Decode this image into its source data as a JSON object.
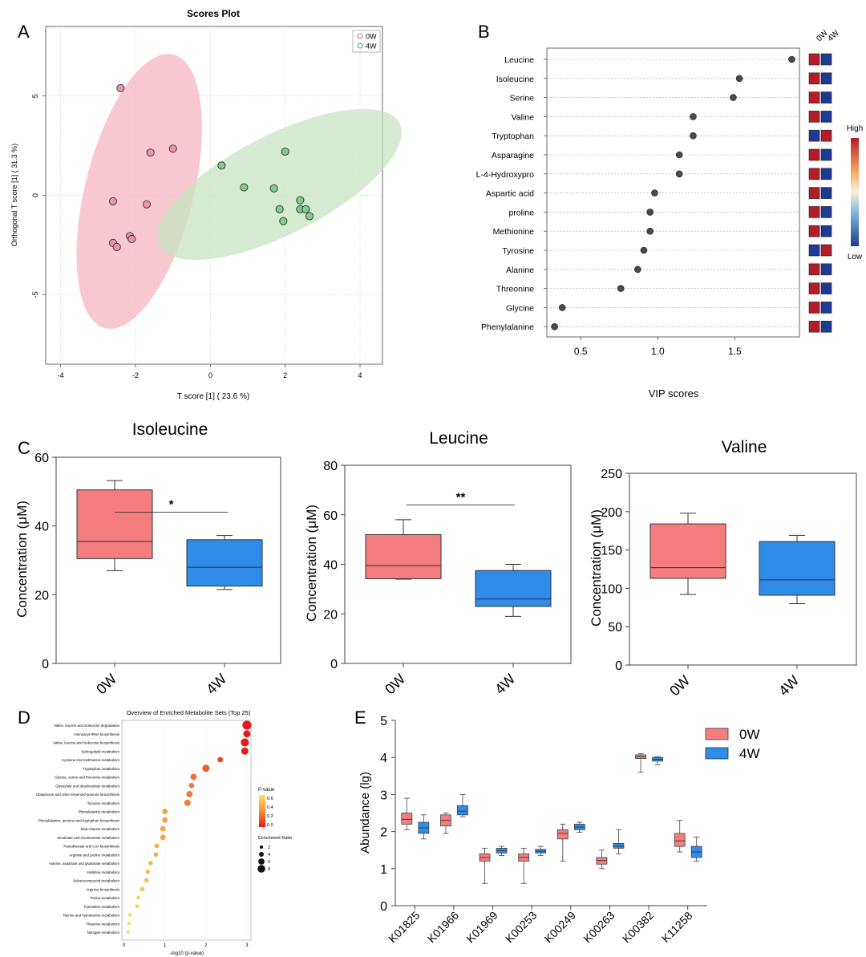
{
  "figure": {
    "panel_letters": [
      "A",
      "B",
      "C",
      "D",
      "E"
    ],
    "colors": {
      "group_0W_light": "#f4aab8",
      "group_0W_box": "#f47e7e",
      "group_4W_light": "#b9dcb3",
      "group_4W_box": "#2f8ce9",
      "ellipse_0W": "#f7b6c2",
      "ellipse_4W": "#c9e4c3",
      "point_0W": "#ec93a7",
      "point_4W": "#82c98a",
      "heat_high": "#b11d2b",
      "heat_low": "#1f3a93",
      "enrich_high": "#e31a1c",
      "enrich_low": "#ffe45a"
    }
  },
  "chart_data": [
    {
      "id": "A",
      "type": "scatter",
      "title": "Scores Plot",
      "xlabel": "T score [1] ( 23.6 %)",
      "ylabel": "Orthogonal T score [1] ( 31.3 %)",
      "xlim": [
        -4.4,
        4.6
      ],
      "ylim": [
        -8.5,
        8.5
      ],
      "xticks": [
        -4,
        -2,
        0,
        2,
        4
      ],
      "xtick_labels": [
        "-4",
        "-2",
        "0",
        "2",
        "4"
      ],
      "yticks": [
        5,
        0,
        -5
      ],
      "ytick_labels": [
        "5",
        "0",
        "-5"
      ],
      "legend": {
        "position": "top-right",
        "entries": [
          "0W",
          "4W"
        ]
      },
      "ellipses": [
        {
          "group": "0W",
          "cx": -1.9,
          "cy": 0.2,
          "rx": 1.45,
          "ry": 7.1,
          "angle_deg": 14
        },
        {
          "group": "4W",
          "cx": 1.85,
          "cy": 0.55,
          "rx": 3.6,
          "ry": 2.5,
          "angle_deg": -27
        }
      ],
      "series": [
        {
          "name": "0W",
          "points": [
            [
              -2.4,
              5.4
            ],
            [
              -1.6,
              2.15
            ],
            [
              -1.0,
              2.35
            ],
            [
              -2.6,
              -0.3
            ],
            [
              -1.7,
              -0.45
            ],
            [
              -2.15,
              -2.05
            ],
            [
              -2.1,
              -2.2
            ],
            [
              -2.6,
              -2.4
            ],
            [
              -2.5,
              -2.6
            ]
          ]
        },
        {
          "name": "4W",
          "points": [
            [
              0.3,
              1.5
            ],
            [
              2.0,
              2.2
            ],
            [
              0.9,
              0.4
            ],
            [
              1.7,
              0.35
            ],
            [
              2.4,
              -0.25
            ],
            [
              2.4,
              -0.7
            ],
            [
              2.55,
              -0.7
            ],
            [
              1.85,
              -0.7
            ],
            [
              2.65,
              -1.05
            ],
            [
              1.95,
              -1.3
            ]
          ]
        }
      ]
    },
    {
      "id": "B",
      "type": "scatter",
      "title": "",
      "xlabel": "VIP scores",
      "xlim": [
        0.28,
        1.92
      ],
      "xticks": [
        0.5,
        1.0,
        1.5
      ],
      "xtick_labels": [
        "0.5",
        "1.0",
        "1.5"
      ],
      "heatmap_columns": [
        "0W",
        "4W"
      ],
      "colorbar": {
        "high_label": "High",
        "low_label": "Low"
      },
      "metabolites": [
        {
          "name": "Leucine",
          "vip": 1.87,
          "heat": [
            "high",
            "low"
          ]
        },
        {
          "name": "Isoleucine",
          "vip": 1.53,
          "heat": [
            "high",
            "low"
          ]
        },
        {
          "name": "Serine",
          "vip": 1.49,
          "heat": [
            "high",
            "low"
          ]
        },
        {
          "name": "Valine",
          "vip": 1.23,
          "heat": [
            "high",
            "low"
          ]
        },
        {
          "name": "Tryptophan",
          "vip": 1.23,
          "heat": [
            "low",
            "high"
          ]
        },
        {
          "name": "Asparagine",
          "vip": 1.14,
          "heat": [
            "high",
            "low"
          ]
        },
        {
          "name": "L-4-Hydroxypro",
          "vip": 1.14,
          "heat": [
            "high",
            "low"
          ]
        },
        {
          "name": "Aspartic acid",
          "vip": 0.98,
          "heat": [
            "high",
            "low"
          ]
        },
        {
          "name": "proline",
          "vip": 0.95,
          "heat": [
            "high",
            "low"
          ]
        },
        {
          "name": "Methionine",
          "vip": 0.95,
          "heat": [
            "high",
            "low"
          ]
        },
        {
          "name": "Tyrosine",
          "vip": 0.91,
          "heat": [
            "low",
            "high"
          ]
        },
        {
          "name": "Alanine",
          "vip": 0.87,
          "heat": [
            "high",
            "low"
          ]
        },
        {
          "name": "Threonine",
          "vip": 0.76,
          "heat": [
            "high",
            "low"
          ]
        },
        {
          "name": "Glycine",
          "vip": 0.38,
          "heat": [
            "high",
            "low"
          ]
        },
        {
          "name": "Phenylalanine",
          "vip": 0.33,
          "heat": [
            "high",
            "low"
          ]
        }
      ]
    },
    {
      "id": "C1",
      "type": "box",
      "title": "Isoleucine",
      "ylabel": "Concentration (μM)",
      "ylim": [
        0,
        60
      ],
      "yticks": [
        0,
        20,
        40,
        60
      ],
      "categories": [
        "0W",
        "4W"
      ],
      "boxes": [
        {
          "group": "0W",
          "min": 27,
          "q1": 30.5,
          "median": 35.5,
          "q3": 50.5,
          "max": 53.2
        },
        {
          "group": "4W",
          "min": 21.5,
          "q1": 22.5,
          "median": 28,
          "q3": 36,
          "max": 37.2
        }
      ],
      "significance": "*"
    },
    {
      "id": "C2",
      "type": "box",
      "title": "Leucine",
      "ylabel": "Concentration (μM)",
      "ylim": [
        0,
        80
      ],
      "yticks": [
        0,
        20,
        40,
        60,
        80
      ],
      "categories": [
        "0W",
        "4W"
      ],
      "boxes": [
        {
          "group": "0W",
          "min": 34,
          "q1": 34.2,
          "median": 39.5,
          "q3": 52,
          "max": 58
        },
        {
          "group": "4W",
          "min": 19,
          "q1": 23,
          "median": 26,
          "q3": 37.5,
          "max": 40
        }
      ],
      "significance": "**"
    },
    {
      "id": "C3",
      "type": "box",
      "title": "Valine",
      "ylabel": "Concentration (μM)",
      "ylim": [
        0,
        250
      ],
      "yticks": [
        0,
        50,
        100,
        150,
        200,
        250
      ],
      "categories": [
        "0W",
        "4W"
      ],
      "boxes": [
        {
          "group": "0W",
          "min": 92,
          "q1": 113,
          "median": 127,
          "q3": 184,
          "max": 198
        },
        {
          "group": "4W",
          "min": 80,
          "q1": 91,
          "median": 111,
          "q3": 161,
          "max": 169
        }
      ],
      "significance": ""
    },
    {
      "id": "D",
      "type": "scatter",
      "title": "Overview of Enriched Metabolite Sets (Top 25)",
      "xlabel": "-log10 (p-value)",
      "xlim": [
        -0.05,
        3.1
      ],
      "xticks": [
        0,
        1,
        2,
        3
      ],
      "xtick_labels": [
        "0",
        "1",
        "2",
        "3"
      ],
      "color_legend": {
        "title": "P-value",
        "labels": [
          "0.6",
          "0.4",
          "0.2",
          "0.0"
        ]
      },
      "size_legend": {
        "title": "Enrichment Ratio",
        "labels": [
          "2",
          "4",
          "6",
          "8"
        ]
      },
      "sets": [
        {
          "name": "Valine, leucine and isoleucine degradation",
          "x": 3.0,
          "size": 8
        },
        {
          "name": "Aminoacyl-tRNA biosynthesis",
          "x": 3.0,
          "size": 6
        },
        {
          "name": "Valine, leucine and isoleucine biosynthesis",
          "x": 2.95,
          "size": 7
        },
        {
          "name": "Sphingolipid metabolism",
          "x": 2.95,
          "size": 6
        },
        {
          "name": "Cysteine and methionine metabolism",
          "x": 2.35,
          "size": 4
        },
        {
          "name": "Tryptophan metabolism",
          "x": 2.0,
          "size": 6
        },
        {
          "name": "Glycine, serine and threonine metabolism",
          "x": 1.7,
          "size": 5
        },
        {
          "name": "Glyoxylate and dicarboxylate metabolism",
          "x": 1.65,
          "size": 4
        },
        {
          "name": "Ubiquinone and other terpenoid-quinone biosynthesis",
          "x": 1.6,
          "size": 5
        },
        {
          "name": "Tyrosine metabolism",
          "x": 1.55,
          "size": 5
        },
        {
          "name": "Phenylalanine metabolism",
          "x": 1.0,
          "size": 4
        },
        {
          "name": "Phenylalanine, tyrosine and tryptophan biosynthesis",
          "x": 1.0,
          "size": 4
        },
        {
          "name": "beta-Alanine metabolism",
          "x": 0.95,
          "size": 4
        },
        {
          "name": "Nicotinate and nicotinamide metabolism",
          "x": 0.95,
          "size": 4
        },
        {
          "name": "Pantothenate and CoA biosynthesis",
          "x": 0.8,
          "size": 3
        },
        {
          "name": "Arginine and proline metabolism",
          "x": 0.78,
          "size": 3
        },
        {
          "name": "Alanine, aspartate and glutamate metabolism",
          "x": 0.65,
          "size": 3
        },
        {
          "name": "Histidine metabolism",
          "x": 0.58,
          "size": 3
        },
        {
          "name": "Selenocompound metabolism",
          "x": 0.55,
          "size": 3
        },
        {
          "name": "Arginine biosynthesis",
          "x": 0.45,
          "size": 3
        },
        {
          "name": "Purine metabolism",
          "x": 0.35,
          "size": 2
        },
        {
          "name": "Pyrimidine metabolism",
          "x": 0.32,
          "size": 2
        },
        {
          "name": "Taurine and hypotaurine metabolism",
          "x": 0.15,
          "size": 2
        },
        {
          "name": "Thiamine metabolism",
          "x": 0.12,
          "size": 2
        },
        {
          "name": "Nitrogen metabolism",
          "x": 0.1,
          "size": 2
        }
      ]
    },
    {
      "id": "E",
      "type": "box",
      "title": "",
      "ylabel": "Abundance (lg)",
      "ylim": [
        0,
        5
      ],
      "yticks": [
        0,
        1,
        2,
        3,
        4,
        5
      ],
      "legend": {
        "position": "top-right",
        "entries": [
          "0W",
          "4W"
        ]
      },
      "categories": [
        "K01825",
        "K01966",
        "K01969",
        "K00253",
        "K00249",
        "K00263",
        "K00382",
        "K11258"
      ],
      "series": [
        {
          "name": "0W",
          "boxes": [
            {
              "min": 2.05,
              "q1": 2.2,
              "median": 2.33,
              "q3": 2.5,
              "max": 2.9
            },
            {
              "min": 1.95,
              "q1": 2.15,
              "median": 2.3,
              "q3": 2.45,
              "max": 2.5
            },
            {
              "min": 0.6,
              "q1": 1.2,
              "median": 1.3,
              "q3": 1.4,
              "max": 1.55
            },
            {
              "min": 0.6,
              "q1": 1.2,
              "median": 1.3,
              "q3": 1.4,
              "max": 1.55
            },
            {
              "min": 1.2,
              "q1": 1.8,
              "median": 1.95,
              "q3": 2.05,
              "max": 2.2
            },
            {
              "min": 1.0,
              "q1": 1.12,
              "median": 1.22,
              "q3": 1.3,
              "max": 1.5
            },
            {
              "min": 3.6,
              "q1": 3.97,
              "median": 4.02,
              "q3": 4.07,
              "max": 4.1
            },
            {
              "min": 1.45,
              "q1": 1.6,
              "median": 1.75,
              "q3": 1.95,
              "max": 2.3
            }
          ]
        },
        {
          "name": "4W",
          "boxes": [
            {
              "min": 1.8,
              "q1": 1.95,
              "median": 2.1,
              "q3": 2.25,
              "max": 2.45
            },
            {
              "min": 2.4,
              "q1": 2.45,
              "median": 2.55,
              "q3": 2.7,
              "max": 3.0
            },
            {
              "min": 1.35,
              "q1": 1.42,
              "median": 1.48,
              "q3": 1.55,
              "max": 1.6
            },
            {
              "min": 1.35,
              "q1": 1.42,
              "median": 1.47,
              "q3": 1.52,
              "max": 1.6
            },
            {
              "min": 1.98,
              "q1": 2.05,
              "median": 2.12,
              "q3": 2.2,
              "max": 2.25
            },
            {
              "min": 1.4,
              "q1": 1.55,
              "median": 1.6,
              "q3": 1.68,
              "max": 2.05
            },
            {
              "min": 3.8,
              "q1": 3.9,
              "median": 3.95,
              "q3": 4.0,
              "max": 4.02
            },
            {
              "min": 1.2,
              "q1": 1.3,
              "median": 1.45,
              "q3": 1.6,
              "max": 1.85
            }
          ]
        }
      ]
    }
  ]
}
